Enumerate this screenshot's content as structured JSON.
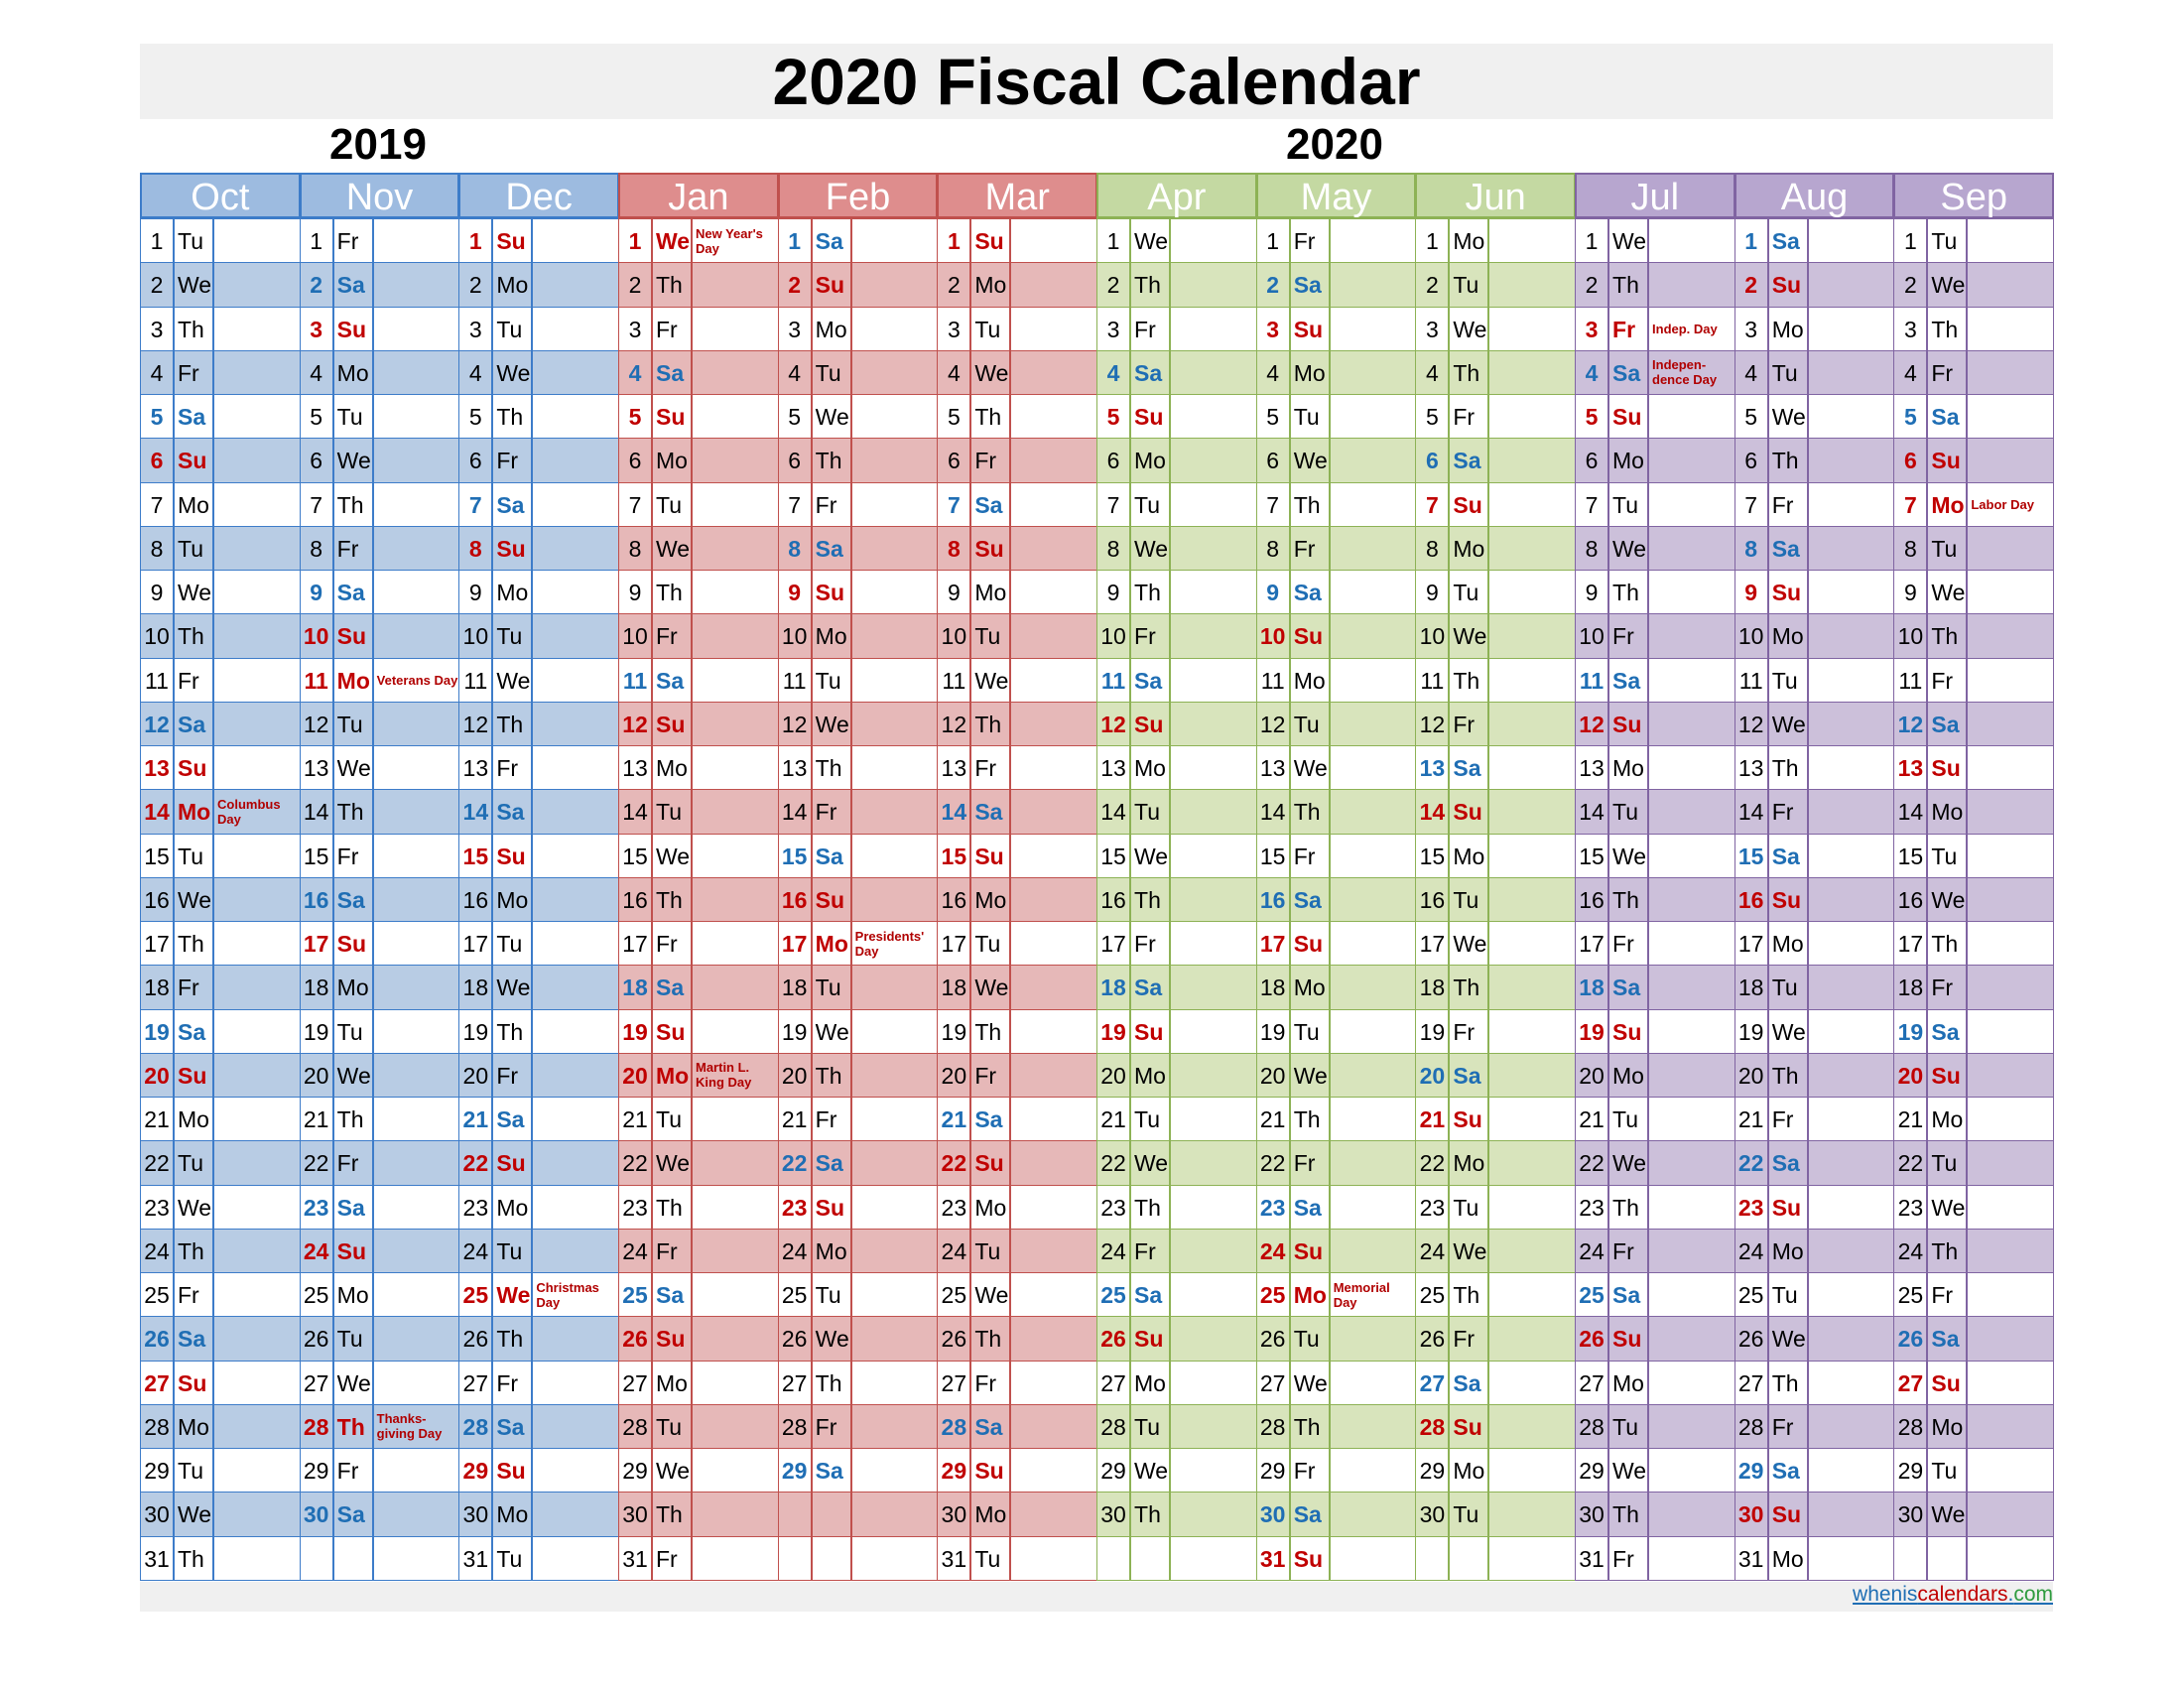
{
  "title": "2020 Fiscal Calendar",
  "years": [
    "2019",
    "2020"
  ],
  "colors": {
    "blue_header": "#9dbbe0",
    "blue_fill": "#b8cce4",
    "blue_border": "#3d7cc9",
    "red_header": "#de8d8d",
    "red_fill": "#e6b8b8",
    "red_border": "#c0504d",
    "green_header": "#c4d9a2",
    "green_fill": "#d8e4bc",
    "green_border": "#8db255",
    "purple_header": "#b7a6cf",
    "purple_fill": "#ccc0da",
    "purple_border": "#8064a2",
    "sunday_text": "#c00000",
    "saturday_text": "#1f6eb4"
  },
  "months": [
    {
      "name": "Oct",
      "days": 31,
      "startDow": 2,
      "theme": "blue"
    },
    {
      "name": "Nov",
      "days": 30,
      "startDow": 5,
      "theme": "blue"
    },
    {
      "name": "Dec",
      "days": 31,
      "startDow": 0,
      "theme": "blue"
    },
    {
      "name": "Jan",
      "days": 31,
      "startDow": 3,
      "theme": "red"
    },
    {
      "name": "Feb",
      "days": 29,
      "startDow": 6,
      "theme": "red"
    },
    {
      "name": "Mar",
      "days": 31,
      "startDow": 0,
      "theme": "red"
    },
    {
      "name": "Apr",
      "days": 30,
      "startDow": 3,
      "theme": "green"
    },
    {
      "name": "May",
      "days": 31,
      "startDow": 5,
      "theme": "green"
    },
    {
      "name": "Jun",
      "days": 30,
      "startDow": 1,
      "theme": "green"
    },
    {
      "name": "Jul",
      "days": 31,
      "startDow": 3,
      "theme": "purple"
    },
    {
      "name": "Aug",
      "days": 31,
      "startDow": 6,
      "theme": "purple"
    },
    {
      "name": "Sep",
      "days": 30,
      "startDow": 2,
      "theme": "purple"
    }
  ],
  "day_abbrevs": [
    "Su",
    "Mo",
    "Tu",
    "We",
    "Th",
    "Fr",
    "Sa"
  ],
  "holidays": [
    {
      "month": 0,
      "day": 14,
      "label": "Columbus Day"
    },
    {
      "month": 1,
      "day": 11,
      "label": "Veterans Day"
    },
    {
      "month": 1,
      "day": 28,
      "label": "Thanks-giving Day"
    },
    {
      "month": 2,
      "day": 25,
      "label": "Christmas Day"
    },
    {
      "month": 3,
      "day": 1,
      "label": "New Year's Day"
    },
    {
      "month": 3,
      "day": 20,
      "label": "Martin L. King Day"
    },
    {
      "month": 4,
      "day": 17,
      "label": "Presidents' Day"
    },
    {
      "month": 7,
      "day": 25,
      "label": "Memorial Day"
    },
    {
      "month": 9,
      "day": 3,
      "label": "Indep. Day"
    },
    {
      "month": 9,
      "day": 4,
      "label": "Indepen-dence Day"
    },
    {
      "month": 11,
      "day": 7,
      "label": "Labor Day"
    }
  ],
  "footer": {
    "part1": "whenis",
    "part2": "calendars",
    "part3": ".",
    "part4": "com"
  }
}
